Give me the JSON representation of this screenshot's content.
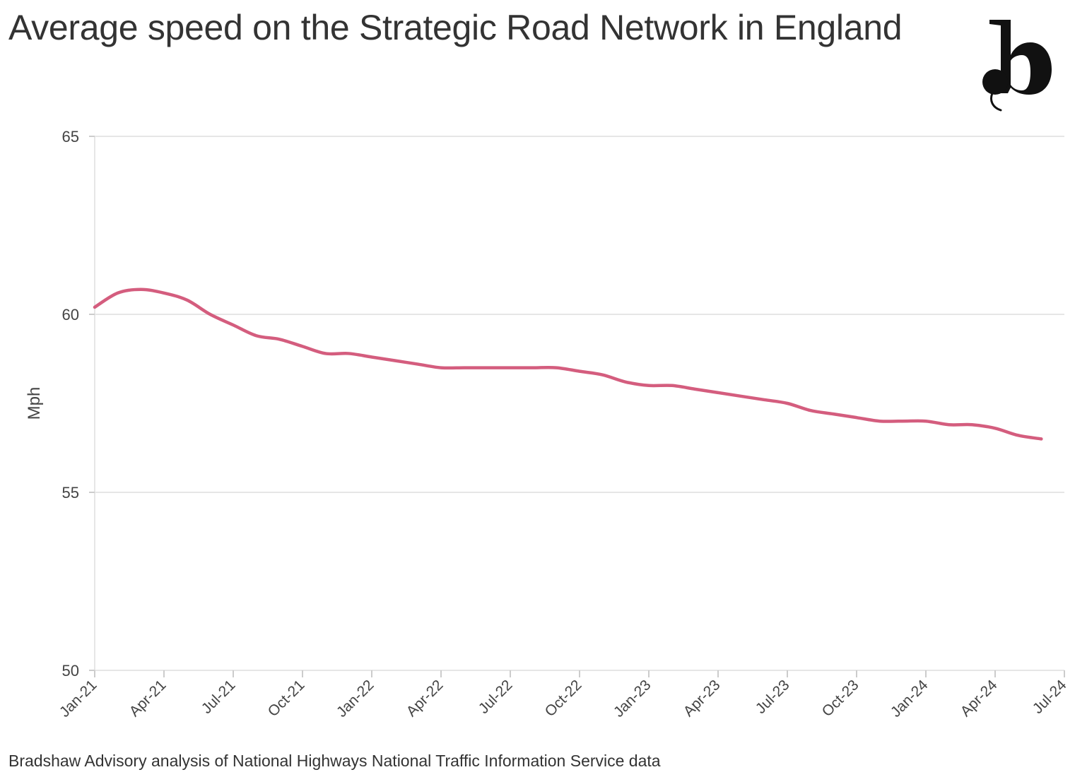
{
  "chart_data": {
    "type": "line",
    "title": "Average speed on the Strategic Road Network in England",
    "xlabel": "",
    "ylabel": "Mph",
    "ylim": [
      50,
      65
    ],
    "y_ticks": [
      "50",
      "55",
      "60",
      "65"
    ],
    "x_ticks": [
      "Jan-21",
      "Apr-21",
      "Jul-21",
      "Oct-21",
      "Jan-22",
      "Apr-22",
      "Jul-22",
      "Oct-22",
      "Jan-23",
      "Apr-23",
      "Jul-23",
      "Oct-23",
      "Jan-24",
      "Apr-24",
      "Jul-24"
    ],
    "x_tick_dates": [
      "2021-01",
      "2021-04",
      "2021-07",
      "2021-10",
      "2022-01",
      "2022-04",
      "2022-07",
      "2022-10",
      "2023-01",
      "2023-04",
      "2023-07",
      "2023-10",
      "2024-01",
      "2024-04",
      "2024-07"
    ],
    "grid": true,
    "series": [
      {
        "color": "#d45d7e",
        "x": [
          "2021-01",
          "2021-02",
          "2021-03",
          "2021-04",
          "2021-05",
          "2021-06",
          "2021-07",
          "2021-08",
          "2021-09",
          "2021-10",
          "2021-11",
          "2021-12",
          "2022-01",
          "2022-02",
          "2022-03",
          "2022-04",
          "2022-05",
          "2022-06",
          "2022-07",
          "2022-08",
          "2022-09",
          "2022-10",
          "2022-11",
          "2022-12",
          "2023-01",
          "2023-02",
          "2023-03",
          "2023-04",
          "2023-05",
          "2023-06",
          "2023-07",
          "2023-08",
          "2023-09",
          "2023-10",
          "2023-11",
          "2023-12",
          "2024-01",
          "2024-02",
          "2024-03",
          "2024-04",
          "2024-05",
          "2024-06"
        ],
        "values": [
          60.2,
          60.6,
          60.7,
          60.6,
          60.4,
          60.0,
          59.7,
          59.4,
          59.3,
          59.1,
          58.9,
          58.9,
          58.8,
          58.7,
          58.6,
          58.5,
          58.5,
          58.5,
          58.5,
          58.5,
          58.5,
          58.4,
          58.3,
          58.1,
          58.0,
          58.0,
          57.9,
          57.8,
          57.7,
          57.6,
          57.5,
          57.3,
          57.2,
          57.1,
          57.0,
          57.0,
          57.0,
          56.9,
          56.9,
          56.8,
          56.6,
          56.5
        ]
      }
    ]
  },
  "source": "Bradshaw Advisory analysis of National Highways National Traffic Information Service data",
  "logo": {
    "text": "b",
    "icon": "publisher-b-logo"
  }
}
